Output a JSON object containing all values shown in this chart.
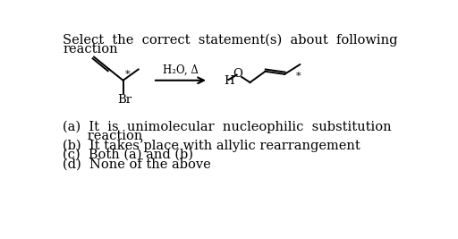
{
  "bg_color": "#ffffff",
  "title_line1": "Select  the  correct  statement(s)  about  following",
  "title_line2": "reaction",
  "condition": "H₂O, Δ",
  "option_a1": "(a)  It  is  unimolecular  nucleophilic  substitution",
  "option_a2": "      reaction",
  "option_b": "(b)  It takes’place with allylic rearrangement",
  "option_c": "(c)  Both (a) and (b)",
  "option_d": "(d)  None of the above",
  "text_color": "#000000",
  "font_size_title": 10.5,
  "font_size_options": 10.5,
  "font_size_chem": 9.5
}
